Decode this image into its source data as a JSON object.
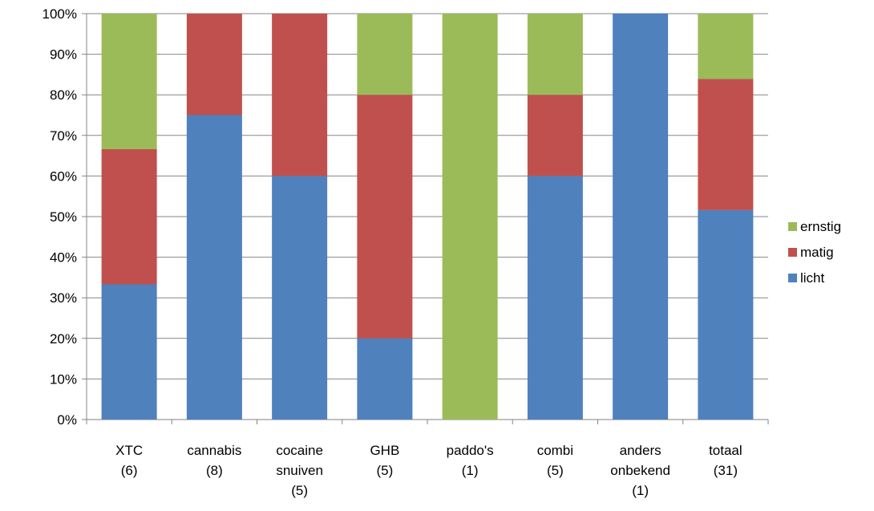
{
  "chart_data": {
    "type": "bar",
    "stacked": true,
    "percent": true,
    "title": "",
    "xlabel": "",
    "ylabel": "",
    "ylim": [
      0,
      100
    ],
    "yticks": [
      "0%",
      "10%",
      "20%",
      "30%",
      "40%",
      "50%",
      "60%",
      "70%",
      "80%",
      "90%",
      "100%"
    ],
    "grid": true,
    "legend_position": "right",
    "categories": [
      [
        "XTC",
        "(6)"
      ],
      [
        "cannabis",
        "(8)"
      ],
      [
        "cocaine",
        "snuiven",
        "(5)"
      ],
      [
        "GHB",
        "(5)"
      ],
      [
        "paddo's",
        "(1)"
      ],
      [
        "combi",
        "(5)"
      ],
      [
        "anders",
        "onbekend",
        "(1)"
      ],
      [
        "totaal",
        "(31)"
      ]
    ],
    "series": [
      {
        "name": "licht",
        "color": "#4F81BD",
        "values": [
          33.3,
          75,
          60,
          20,
          0,
          60,
          100,
          51.6
        ]
      },
      {
        "name": "matig",
        "color": "#C0504D",
        "values": [
          33.3,
          25,
          40,
          60,
          0,
          20,
          0,
          32.3
        ]
      },
      {
        "name": "ernstig",
        "color": "#9BBB59",
        "values": [
          33.4,
          0,
          0,
          20,
          100,
          20,
          0,
          16.1
        ]
      }
    ],
    "legend_order": [
      "ernstig",
      "matig",
      "licht"
    ]
  }
}
